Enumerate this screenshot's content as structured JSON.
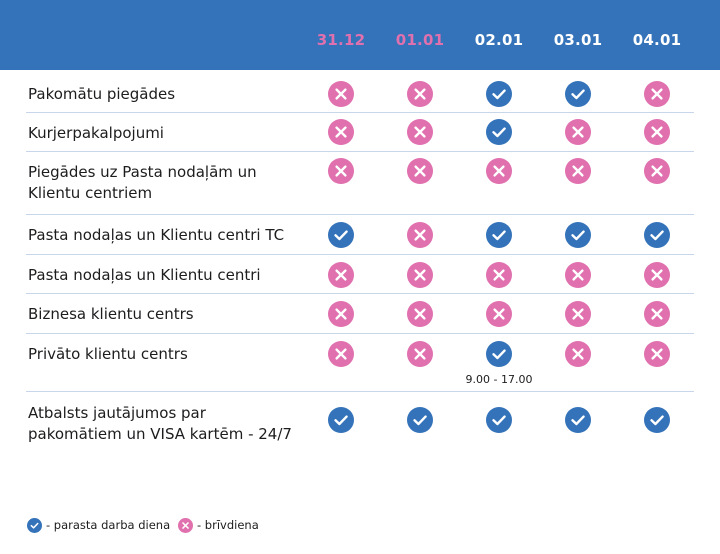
{
  "colors": {
    "header_bg": "#3473b9",
    "holiday_date": "#e070ae",
    "workday_date": "#ffffff",
    "check": "#3473b9",
    "cross": "#e070ae"
  },
  "header": {
    "dates": [
      {
        "label": "31.12",
        "kind": "holiday"
      },
      {
        "label": "01.01",
        "kind": "holiday"
      },
      {
        "label": "02.01",
        "kind": "workday"
      },
      {
        "label": "03.01",
        "kind": "workday"
      },
      {
        "label": "04.01",
        "kind": "workday"
      }
    ]
  },
  "rows": [
    {
      "label": "Pakomātu piegādes",
      "status": [
        "x",
        "x",
        "v",
        "v",
        "x"
      ]
    },
    {
      "label": "Kurjerpakalpojumi",
      "status": [
        "x",
        "x",
        "v",
        "x",
        "x"
      ]
    },
    {
      "label": "Piegādes uz Pasta nodaļām un Klientu centriem",
      "status": [
        "x",
        "x",
        "x",
        "x",
        "x"
      ]
    },
    {
      "label": "Pasta nodaļas un Klientu centri TC",
      "status": [
        "v",
        "x",
        "v",
        "v",
        "v"
      ]
    },
    {
      "label": "Pasta nodaļas un Klientu centri",
      "status": [
        "x",
        "x",
        "x",
        "x",
        "x"
      ]
    },
    {
      "label": "Biznesa klientu centrs",
      "status": [
        "x",
        "x",
        "x",
        "x",
        "x"
      ]
    },
    {
      "label": "Privāto klientu centrs",
      "status": [
        "x",
        "x",
        "v",
        "x",
        "x"
      ],
      "note": "9.00 - 17.00"
    },
    {
      "label": "Atbalsts jautājumos par pakomātiem un VISA kartēm - 24/7",
      "status": [
        "v",
        "v",
        "v",
        "v",
        "v"
      ]
    }
  ],
  "legend": {
    "check_label": "- parasta darba diena",
    "cross_label": "- brīvdiena",
    "check_icon": "check-circle-icon",
    "cross_icon": "cross-circle-icon"
  }
}
